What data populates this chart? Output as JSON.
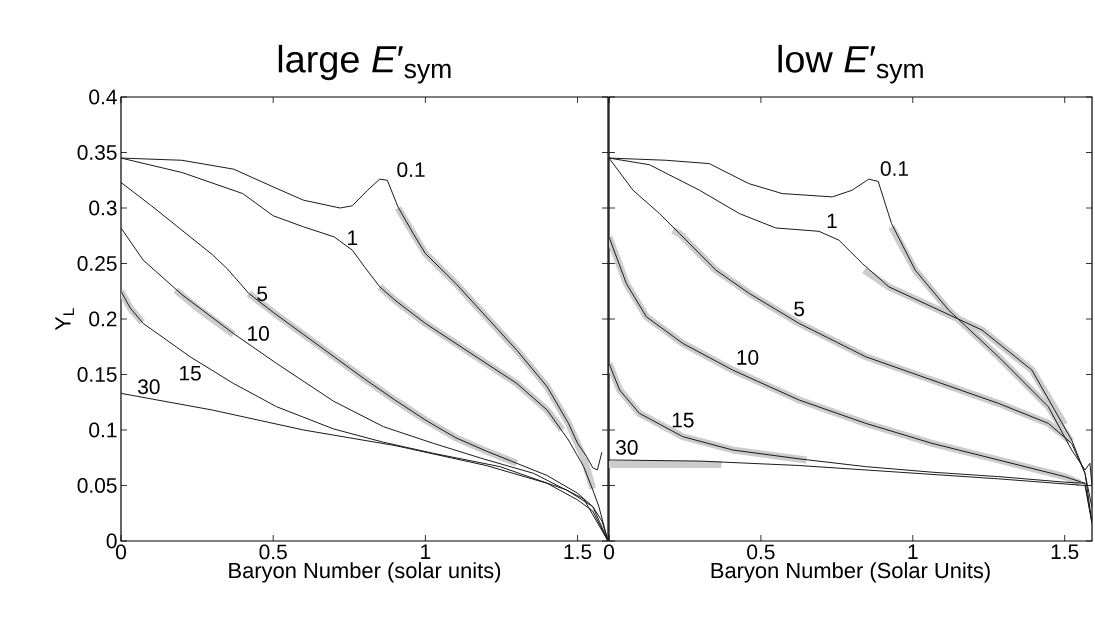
{
  "chart_data": [
    {
      "type": "line",
      "title": "large *E*′$_{sym}$",
      "xlabel": "Baryon Number (solar units)",
      "ylabel": "Y$_{L}$",
      "xlim": [
        0,
        1.6
      ],
      "ylim": [
        0,
        0.4
      ],
      "xticks": [
        0,
        0.5,
        1,
        1.5
      ],
      "yticks": [
        0,
        0.05,
        0.1,
        0.15,
        0.2,
        0.25,
        0.3,
        0.35,
        0.4
      ],
      "grid": false,
      "marker": "none",
      "line_style": "solid",
      "series": [
        {
          "color": "#cccccc",
          "x": [
            0.91,
            0.96,
            1.0,
            1.1,
            1.2,
            1.3,
            1.4,
            1.47,
            1.52,
            1.55
          ],
          "values": [
            0.3,
            0.277,
            0.259,
            0.232,
            0.202,
            0.172,
            0.139,
            0.106,
            0.075,
            0.047
          ]
        },
        {
          "color": "#cccccc",
          "x": [
            0.85,
            0.9,
            1.0,
            1.1,
            1.2,
            1.3,
            1.4,
            1.45
          ],
          "values": [
            0.229,
            0.217,
            0.196,
            0.178,
            0.16,
            0.142,
            0.118,
            0.1
          ]
        },
        {
          "color": "#cccccc",
          "x": [
            0.42,
            0.5,
            0.6,
            0.7,
            0.8,
            0.9,
            1.0,
            1.1,
            1.2,
            1.3
          ],
          "values": [
            0.223,
            0.206,
            0.186,
            0.166,
            0.146,
            0.127,
            0.109,
            0.093,
            0.081,
            0.07
          ]
        },
        {
          "color": "#cccccc",
          "x": [
            0.18,
            0.25,
            0.37
          ],
          "values": [
            0.226,
            0.21,
            0.186
          ]
        },
        {
          "color": "#cccccc",
          "x": [
            0,
            0.03,
            0.07
          ],
          "values": [
            0.225,
            0.21,
            0.197
          ]
        },
        {
          "name": "0.1",
          "color": "#1a1a1a",
          "x": [
            0,
            0.2,
            0.37,
            0.5,
            0.6,
            0.72,
            0.76,
            0.81,
            0.85,
            0.875,
            0.91,
            0.96,
            1.0,
            1.1,
            1.2,
            1.3,
            1.4,
            1.47,
            1.5,
            1.53,
            1.55,
            1.565,
            1.58
          ],
          "values": [
            0.345,
            0.343,
            0.335,
            0.319,
            0.307,
            0.3,
            0.302,
            0.316,
            0.326,
            0.325,
            0.301,
            0.277,
            0.259,
            0.232,
            0.202,
            0.172,
            0.139,
            0.106,
            0.088,
            0.076,
            0.066,
            0.064,
            0.08
          ]
        },
        {
          "name": "1",
          "color": "#1a1a1a",
          "x": [
            0,
            0.2,
            0.4,
            0.5,
            0.6,
            0.7,
            0.76,
            0.8,
            0.85,
            0.9,
            1.0,
            1.1,
            1.2,
            1.3,
            1.4,
            1.47,
            1.52,
            1.55,
            1.57,
            1.6
          ],
          "values": [
            0.345,
            0.332,
            0.313,
            0.293,
            0.283,
            0.274,
            0.262,
            0.247,
            0.229,
            0.217,
            0.196,
            0.178,
            0.16,
            0.142,
            0.118,
            0.091,
            0.067,
            0.046,
            0.031,
            0
          ]
        },
        {
          "name": "5",
          "color": "#1a1a1a",
          "x": [
            0,
            0.1,
            0.2,
            0.3,
            0.35,
            0.42,
            0.5,
            0.6,
            0.7,
            0.8,
            0.9,
            1.0,
            1.1,
            1.2,
            1.3,
            1.4,
            1.5,
            1.55,
            1.58,
            1.6
          ],
          "values": [
            0.323,
            0.302,
            0.28,
            0.258,
            0.245,
            0.223,
            0.206,
            0.186,
            0.166,
            0.146,
            0.127,
            0.109,
            0.093,
            0.081,
            0.07,
            0.059,
            0.043,
            0.031,
            0.018,
            0
          ]
        },
        {
          "name": "10",
          "color": "#1a1a1a",
          "x": [
            0,
            0.073,
            0.2,
            0.369,
            0.511,
            0.698,
            0.862,
            1.026,
            1.19,
            1.355,
            1.52,
            1.6
          ],
          "values": [
            0.282,
            0.253,
            0.222,
            0.187,
            0.16,
            0.126,
            0.103,
            0.088,
            0.074,
            0.061,
            0.038,
            0
          ]
        },
        {
          "name": "15",
          "color": "#1a1a1a",
          "x": [
            0,
            0.03,
            0.073,
            0.227,
            0.369,
            0.511,
            0.698,
            0.862,
            1.026,
            1.245,
            1.464,
            1.55,
            1.6
          ],
          "values": [
            0.225,
            0.21,
            0.196,
            0.166,
            0.142,
            0.121,
            0.101,
            0.089,
            0.079,
            0.067,
            0.046,
            0.031,
            0
          ]
        },
        {
          "name": "30",
          "color": "#1a1a1a",
          "x": [
            0,
            0.3,
            0.6,
            0.9,
            1.2,
            1.4,
            1.5,
            1.55,
            1.6
          ],
          "values": [
            0.133,
            0.118,
            0.1,
            0.086,
            0.068,
            0.052,
            0.037,
            0.027,
            0
          ]
        }
      ]
    },
    {
      "type": "line",
      "title": "low *E*′$_{sym}$",
      "xlabel": "Baryon Number (Solar Units)",
      "xlim": [
        0,
        1.59
      ],
      "ylim": [
        0,
        0.4
      ],
      "xticks": [
        0,
        0.5,
        1,
        1.5
      ],
      "yticks": [
        0,
        0.05,
        0.1,
        0.15,
        0.2,
        0.25,
        0.3,
        0.35,
        0.4
      ],
      "tick_labels": "x",
      "grid": false,
      "marker": "none",
      "line_style": "solid",
      "series": [
        {
          "color": "#cccccc",
          "x": [
            0.93,
            1.008,
            1.118,
            1.282,
            1.446,
            1.52
          ],
          "values": [
            0.283,
            0.244,
            0.208,
            0.166,
            0.121,
            0.09
          ]
        },
        {
          "color": "#cccccc",
          "x": [
            0.84,
            0.921,
            1.063,
            1.228,
            1.392,
            1.5
          ],
          "values": [
            0.244,
            0.229,
            0.211,
            0.19,
            0.154,
            0.105
          ]
        },
        {
          "color": "#cccccc",
          "x": [
            0.21,
            0.232,
            0.352,
            0.462,
            0.626,
            0.845,
            1.063,
            1.282,
            1.446,
            1.52
          ],
          "values": [
            0.28,
            0.277,
            0.244,
            0.223,
            0.196,
            0.166,
            0.145,
            0.124,
            0.106,
            0.09
          ]
        },
        {
          "color": "#cccccc",
          "x": [
            0,
            0.057,
            0.123,
            0.243,
            0.407,
            0.626,
            0.845,
            1.063,
            1.282,
            1.5,
            1.55
          ],
          "values": [
            0.274,
            0.232,
            0.202,
            0.178,
            0.154,
            0.127,
            0.106,
            0.088,
            0.073,
            0.058,
            0.052
          ]
        },
        {
          "color": "#cccccc",
          "x": [
            0,
            0.035,
            0.1,
            0.243,
            0.407,
            0.65
          ],
          "values": [
            0.16,
            0.136,
            0.115,
            0.094,
            0.082,
            0.073
          ]
        },
        {
          "color": "#cccccc",
          "x": [
            0,
            0.37
          ],
          "values": [
            0.069,
            0.069
          ]
        },
        {
          "name": "0.1",
          "color": "#1a1a1a",
          "x": [
            0,
            0.188,
            0.33,
            0.46,
            0.57,
            0.735,
            0.8,
            0.855,
            0.886,
            0.93,
            1.008,
            1.118,
            1.282,
            1.446,
            1.523,
            1.567,
            1.583,
            1.59
          ],
          "values": [
            0.345,
            0.343,
            0.34,
            0.322,
            0.313,
            0.31,
            0.316,
            0.326,
            0.324,
            0.286,
            0.244,
            0.208,
            0.166,
            0.121,
            0.082,
            0.064,
            0.07,
            0.05
          ]
        },
        {
          "name": "1",
          "color": "#1a1a1a",
          "x": [
            0,
            0.133,
            0.298,
            0.429,
            0.549,
            0.691,
            0.757,
            0.834,
            0.921,
            1.063,
            1.228,
            1.392,
            1.523,
            1.567,
            1.59
          ],
          "values": [
            0.345,
            0.339,
            0.316,
            0.295,
            0.282,
            0.279,
            0.271,
            0.25,
            0.229,
            0.211,
            0.19,
            0.154,
            0.091,
            0.061,
            0.016
          ]
        },
        {
          "name": "5",
          "color": "#1a1a1a",
          "x": [
            0,
            0.079,
            0.166,
            0.232,
            0.352,
            0.462,
            0.626,
            0.845,
            1.063,
            1.282,
            1.446,
            1.523,
            1.567,
            1.59
          ],
          "values": [
            0.345,
            0.316,
            0.295,
            0.277,
            0.244,
            0.223,
            0.196,
            0.166,
            0.145,
            0.124,
            0.106,
            0.088,
            0.061,
            0.03
          ]
        },
        {
          "name": "10",
          "color": "#1a1a1a",
          "x": [
            0,
            0.057,
            0.123,
            0.243,
            0.407,
            0.626,
            0.845,
            1.063,
            1.282,
            1.5,
            1.567,
            1.59
          ],
          "values": [
            0.274,
            0.232,
            0.202,
            0.178,
            0.154,
            0.127,
            0.106,
            0.088,
            0.073,
            0.058,
            0.052,
            0.016
          ]
        },
        {
          "name": "15",
          "color": "#1a1a1a",
          "x": [
            0,
            0.035,
            0.1,
            0.243,
            0.407,
            0.626,
            0.845,
            1.063,
            1.282,
            1.5,
            1.567
          ],
          "values": [
            0.16,
            0.136,
            0.115,
            0.094,
            0.082,
            0.074,
            0.067,
            0.062,
            0.058,
            0.053,
            0.052
          ]
        },
        {
          "name": "30",
          "color": "#1a1a1a",
          "x": [
            0,
            0.3,
            0.626,
            0.954,
            1.282,
            1.567,
            1.59
          ],
          "values": [
            0.073,
            0.072,
            0.068,
            0.062,
            0.056,
            0.05,
            0.016
          ]
        }
      ]
    }
  ]
}
